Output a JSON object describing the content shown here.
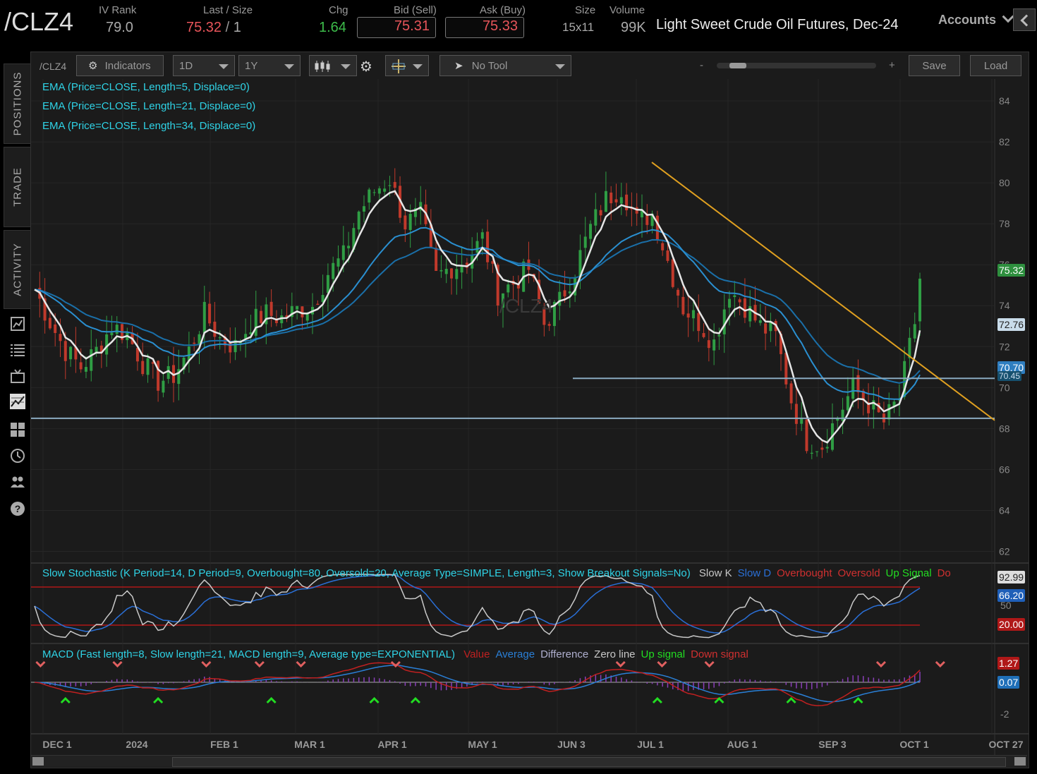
{
  "header": {
    "symbol": "/CLZ4",
    "iv_rank_label": "IV Rank",
    "iv_rank": "79.0",
    "last_size_label": "Last / Size",
    "last": "75.32",
    "size_sep": "/",
    "last_size": "1",
    "chg_label": "Chg",
    "chg": "1.64",
    "bid_label": "Bid (Sell)",
    "bid": "75.31",
    "ask_label": "Ask (Buy)",
    "ask": "75.33",
    "size_label": "Size",
    "size": "15x11",
    "volume_label": "Volume",
    "volume": "99K",
    "description": "Light Sweet Crude Oil Futures, Dec-24",
    "accounts": "Accounts"
  },
  "sidebar": {
    "tabs": [
      "POSITIONS",
      "TRADE",
      "ACTIVITY"
    ],
    "icons": [
      "chart-icon",
      "list-icon",
      "tv-icon",
      "analyze-icon",
      "grid-icon",
      "clock-icon",
      "people-icon",
      "help-icon"
    ]
  },
  "toolbar": {
    "symbol": "/CLZ4",
    "indicators": "Indicators",
    "aggregation": "1D",
    "range": "1Y",
    "tool": "No Tool",
    "zoom_minus": "-",
    "zoom_plus": "+",
    "save": "Save",
    "load": "Load"
  },
  "studies": [
    "EMA (Price=CLOSE, Length=5, Displace=0)",
    "EMA (Price=CLOSE, Length=21, Displace=0)",
    "EMA (Price=CLOSE, Length=34, Displace=0)"
  ],
  "watermark": "/CLZ4",
  "stochastic": {
    "title": "Slow Stochastic (K Period=14, D Period=9, Overbought=80, Oversold=20, Average Type=SIMPLE, Length=3, Show Breakout Signals=No)",
    "legend": [
      {
        "text": "Slow K",
        "color": "#c8c8c8"
      },
      {
        "text": "Slow D",
        "color": "#2a6fd6"
      },
      {
        "text": "Overbought",
        "color": "#d03030"
      },
      {
        "text": "Oversold",
        "color": "#d03030"
      },
      {
        "text": "Up Signal",
        "color": "#22dd22"
      },
      {
        "text": "Do",
        "color": "#d03030"
      }
    ],
    "badges": [
      "92.99",
      "66.20",
      "50",
      "20.00"
    ]
  },
  "macd": {
    "title": "MACD (Fast length=8, Slow length=21, MACD length=9, Average type=EXPONENTIAL)",
    "legend": [
      {
        "text": "Value",
        "color": "#c02020"
      },
      {
        "text": "Average",
        "color": "#2a7fd6"
      },
      {
        "text": "Difference",
        "color": "#b0b0d0"
      },
      {
        "text": "Zero line",
        "color": "#c8c8c8"
      },
      {
        "text": "Up signal",
        "color": "#22dd22"
      },
      {
        "text": "Down signal",
        "color": "#d03030"
      }
    ],
    "badges": [
      "1.27",
      "0.07",
      "-2"
    ]
  },
  "price_badges": [
    "75.32",
    "72.76",
    "70.70",
    "70.45"
  ],
  "chart_data": {
    "type": "candlestick",
    "title": "/CLZ4",
    "y_ticks": [
      84,
      82,
      80,
      78,
      76,
      74,
      72,
      70,
      68,
      66,
      64,
      62
    ],
    "ylim": [
      61.5,
      85
    ],
    "x_ticks": [
      "DEC 1",
      "2024",
      "FEB 1",
      "MAR 1",
      "APR 1",
      "MAY 1",
      "JUN 3",
      "JUL 1",
      "AUG 1",
      "SEP 3",
      "OCT 1",
      "OCT 27"
    ],
    "close_path": [
      [
        0,
        74.8
      ],
      [
        3,
        73.2
      ],
      [
        6,
        71.8
      ],
      [
        9,
        71.0
      ],
      [
        12,
        71.8
      ],
      [
        15,
        73.0
      ],
      [
        18,
        72.6
      ],
      [
        21,
        71.2
      ],
      [
        24,
        70.3
      ],
      [
        27,
        70.6
      ],
      [
        30,
        71.8
      ],
      [
        33,
        73.6
      ],
      [
        36,
        72.4
      ],
      [
        39,
        72.0
      ],
      [
        42,
        73.2
      ],
      [
        45,
        73.6
      ],
      [
        48,
        73.4
      ],
      [
        51,
        73.8
      ],
      [
        54,
        74.0
      ],
      [
        57,
        75.6
      ],
      [
        60,
        76.4
      ],
      [
        63,
        78.6
      ],
      [
        66,
        79.6
      ],
      [
        69,
        80.2
      ],
      [
        72,
        78.0
      ],
      [
        75,
        78.5
      ],
      [
        78,
        75.4
      ],
      [
        81,
        75.9
      ],
      [
        84,
        76.2
      ],
      [
        87,
        77.3
      ],
      [
        90,
        74.6
      ],
      [
        93,
        75.1
      ],
      [
        96,
        75.8
      ],
      [
        99,
        73.1
      ],
      [
        102,
        74.2
      ],
      [
        105,
        75.8
      ],
      [
        108,
        77.8
      ],
      [
        111,
        79.2
      ],
      [
        114,
        79.8
      ],
      [
        117,
        78.1
      ],
      [
        120,
        78.5
      ],
      [
        123,
        76.2
      ],
      [
        126,
        73.9
      ],
      [
        129,
        73.2
      ],
      [
        132,
        72.2
      ],
      [
        135,
        74.8
      ],
      [
        138,
        74.0
      ],
      [
        141,
        73.0
      ],
      [
        144,
        72.5
      ],
      [
        147,
        69.4
      ],
      [
        150,
        67.4
      ],
      [
        153,
        67.2
      ],
      [
        156,
        68.6
      ],
      [
        159,
        70.0
      ],
      [
        162,
        69.2
      ],
      [
        165,
        68.3
      ],
      [
        168,
        69.5
      ],
      [
        171,
        73.2
      ],
      [
        172,
        75.32
      ]
    ],
    "ema_5_last": 72.76,
    "ema_21_last": 70.7,
    "ema_34_last": 70.45,
    "trendline": [
      [
        81.0,
        "Jul"
      ],
      [
        68.4,
        "Oct 27"
      ]
    ],
    "support_lines": [
      70.45,
      68.5
    ]
  }
}
